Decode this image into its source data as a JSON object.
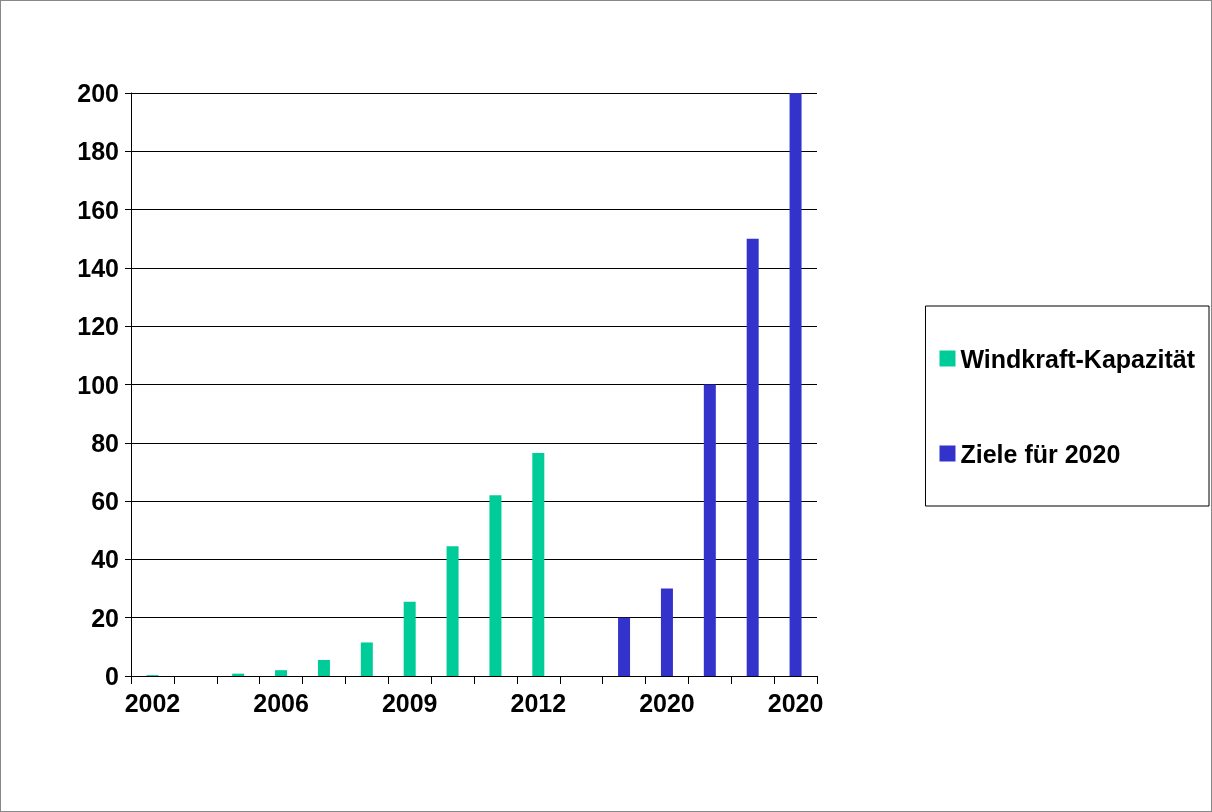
{
  "chart_data": {
    "type": "bar",
    "categories": [
      "2002",
      null,
      null,
      "2006",
      null,
      null,
      "2009",
      null,
      null,
      "2012",
      null,
      null,
      "2020",
      null,
      null,
      "2020"
    ],
    "series": [
      {
        "name": "Windkraft-Kapazität",
        "color": "#00cc99",
        "values": [
          0.3,
          null,
          0.8,
          2,
          5.5,
          11.5,
          25.5,
          44.5,
          62,
          76.5,
          null,
          null,
          null,
          null,
          null,
          null
        ]
      },
      {
        "name": "Ziele für 2020",
        "color": "#3333cc",
        "values": [
          null,
          null,
          null,
          null,
          null,
          null,
          null,
          null,
          null,
          null,
          null,
          20,
          30,
          100,
          150,
          200
        ]
      }
    ],
    "ylim": [
      0,
      200
    ],
    "yticks": [
      0,
      20,
      40,
      60,
      80,
      100,
      120,
      140,
      160,
      180,
      200
    ],
    "grid": "y",
    "legend": "right"
  }
}
